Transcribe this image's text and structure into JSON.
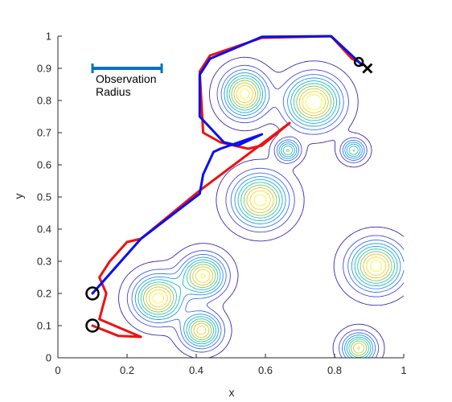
{
  "chart_data": {
    "type": "line",
    "title": "",
    "xlabel": "x",
    "ylabel": "y",
    "xlim": [
      0,
      1
    ],
    "ylim": [
      0,
      1
    ],
    "xticks": [
      0,
      0.2,
      0.4,
      0.6,
      0.8,
      1
    ],
    "xtick_labels": [
      "0",
      "0.2",
      "0.4",
      "0.6",
      "0.8",
      "1"
    ],
    "yticks": [
      0,
      0.1,
      0.2,
      0.3,
      0.4,
      0.5,
      0.6,
      0.7,
      0.8,
      0.9,
      1
    ],
    "ytick_labels": [
      "0",
      "0.1",
      "0.2",
      "0.3",
      "0.4",
      "0.5",
      "0.6",
      "0.7",
      "0.8",
      "0.9",
      "1"
    ],
    "grid": false,
    "box": false,
    "colors": {
      "path_a": "#ee1111",
      "path_b": "#0a10ee",
      "radius_bar": "#0072bd",
      "axis": "#262626",
      "marker": "#000000"
    },
    "annotation": {
      "text_line1": "Observation",
      "text_line2": "Radius",
      "bar_from": [
        0.1,
        0.9
      ],
      "bar_to": [
        0.3,
        0.9
      ]
    },
    "series": [
      {
        "color": "red",
        "points": [
          [
            0.1,
            0.1
          ],
          [
            0.175,
            0.068
          ],
          [
            0.24,
            0.065
          ],
          [
            0.12,
            0.12
          ],
          [
            0.14,
            0.2
          ],
          [
            0.12,
            0.25
          ],
          [
            0.15,
            0.3
          ],
          [
            0.2,
            0.36
          ],
          [
            0.24,
            0.37
          ],
          [
            0.41,
            0.52
          ],
          [
            0.67,
            0.73
          ],
          [
            0.59,
            0.66
          ],
          [
            0.55,
            0.65
          ],
          [
            0.47,
            0.67
          ],
          [
            0.42,
            0.7
          ],
          [
            0.41,
            0.89
          ],
          [
            0.44,
            0.94
          ],
          [
            0.59,
            0.995
          ],
          [
            0.79,
            1.0
          ],
          [
            0.85,
            0.93
          ],
          [
            0.87,
            0.92
          ]
        ]
      },
      {
        "color": "blue",
        "points": [
          [
            0.1,
            0.2
          ],
          [
            0.24,
            0.37
          ],
          [
            0.41,
            0.51
          ],
          [
            0.42,
            0.57
          ],
          [
            0.45,
            0.64
          ],
          [
            0.47,
            0.65
          ],
          [
            0.59,
            0.695
          ],
          [
            0.52,
            0.66
          ],
          [
            0.48,
            0.67
          ],
          [
            0.41,
            0.75
          ],
          [
            0.41,
            0.88
          ],
          [
            0.44,
            0.93
          ],
          [
            0.59,
            0.998
          ],
          [
            0.79,
            1.0
          ],
          [
            0.86,
            0.93
          ],
          [
            0.88,
            0.91
          ]
        ]
      }
    ],
    "markers": {
      "circles": [
        [
          0.1,
          0.1
        ],
        [
          0.1,
          0.2
        ],
        [
          0.87,
          0.92
        ]
      ],
      "cross": [
        0.895,
        0.9
      ]
    },
    "contours": {
      "levels": 10,
      "peaks": [
        {
          "x": 0.54,
          "y": 0.82,
          "sx": 0.04,
          "sy": 0.045,
          "amp": 1.0
        },
        {
          "x": 0.74,
          "y": 0.795,
          "sx": 0.05,
          "sy": 0.05,
          "amp": 1.05
        },
        {
          "x": 0.665,
          "y": 0.645,
          "sx": 0.022,
          "sy": 0.022,
          "amp": 0.65
        },
        {
          "x": 0.855,
          "y": 0.645,
          "sx": 0.022,
          "sy": 0.022,
          "amp": 0.65
        },
        {
          "x": 0.585,
          "y": 0.49,
          "sx": 0.05,
          "sy": 0.05,
          "amp": 1.0
        },
        {
          "x": 0.29,
          "y": 0.185,
          "sx": 0.045,
          "sy": 0.045,
          "amp": 1.0
        },
        {
          "x": 0.42,
          "y": 0.255,
          "sx": 0.04,
          "sy": 0.04,
          "amp": 0.95
        },
        {
          "x": 0.415,
          "y": 0.085,
          "sx": 0.035,
          "sy": 0.035,
          "amp": 0.9
        },
        {
          "x": 0.92,
          "y": 0.285,
          "sx": 0.048,
          "sy": 0.048,
          "amp": 1.0
        },
        {
          "x": 0.87,
          "y": 0.03,
          "sx": 0.03,
          "sy": 0.03,
          "amp": 0.85
        }
      ]
    }
  }
}
